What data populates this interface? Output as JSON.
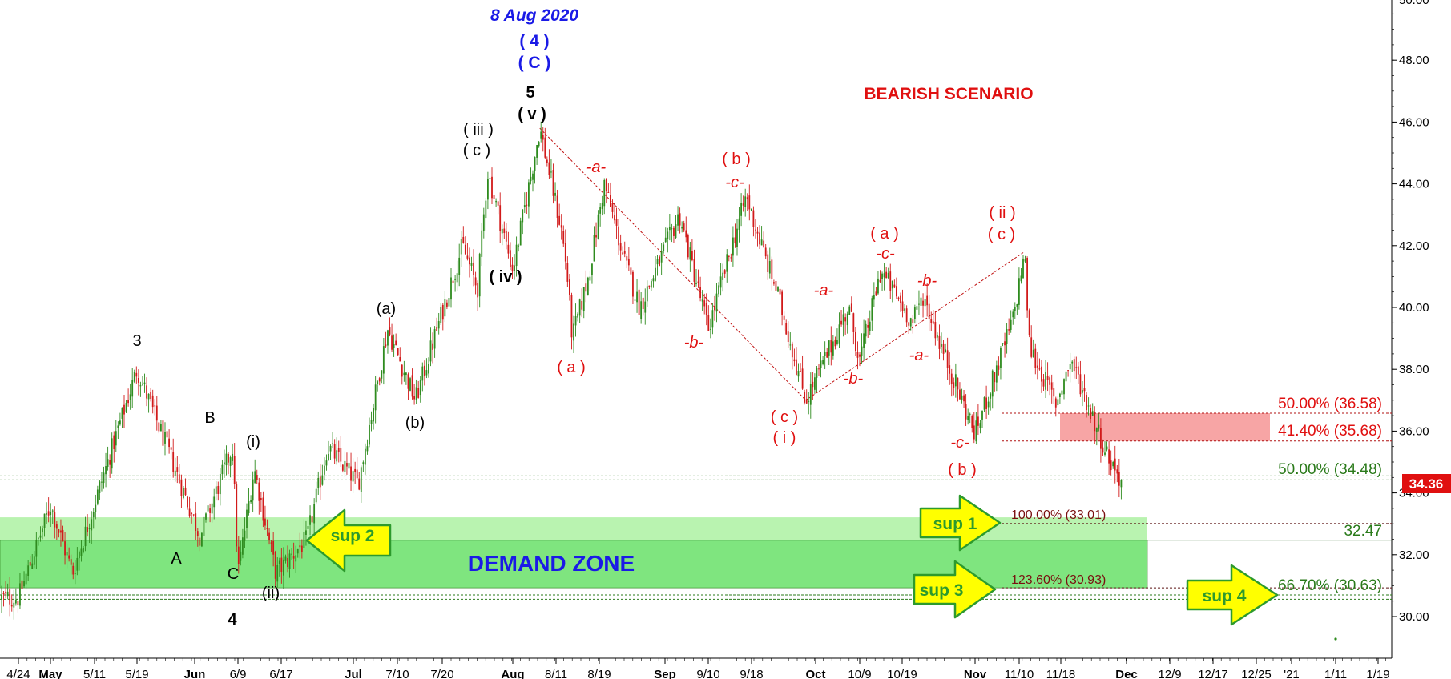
{
  "chart_data": {
    "type": "candlestick",
    "title": "BEARISH SCENARIO",
    "top_label": "8 Aug 2020",
    "ylim": [
      28.9,
      50.2
    ],
    "y_ticks": [
      30,
      32,
      34,
      36,
      38,
      40,
      42,
      44,
      46,
      48
    ],
    "y_tick_labels": [
      "30.00",
      "32.00",
      "34.00",
      "36.00",
      "38.00",
      "40.00",
      "42.00",
      "44.00",
      "46.00",
      "48.00"
    ],
    "y_top_partial_label": "50.00",
    "x_ticks": [
      "4/24",
      "May",
      "5/11",
      "5/19",
      "Jun",
      "6/9",
      "6/17",
      "Jul",
      "7/10",
      "7/20",
      "Aug",
      "8/11",
      "8/19",
      "Sep",
      "9/10",
      "9/18",
      "Oct",
      "10/9",
      "10/19",
      "Nov",
      "11/10",
      "11/18",
      "Dec",
      "12/9",
      "12/17",
      "12/25",
      "'21",
      "1/11",
      "1/19"
    ],
    "last_price": "34.36",
    "price_path": [
      {
        "date": "4/24",
        "price": 30.6
      },
      {
        "date": "5/1",
        "price": 33.6
      },
      {
        "date": "5/6",
        "price": 31.4
      },
      {
        "date": "5/19",
        "price": 38.0
      },
      {
        "date": "5/27",
        "price": 35.0
      },
      {
        "date": "6/2",
        "price": 32.6
      },
      {
        "date": "6/8",
        "price": 35.5
      },
      {
        "date": "6/9",
        "price": 31.4
      },
      {
        "date": "6/12",
        "price": 34.8
      },
      {
        "date": "6/16",
        "price": 31.4
      },
      {
        "date": "6/22",
        "price": 32.5
      },
      {
        "date": "6/26",
        "price": 35.5
      },
      {
        "date": "7/2",
        "price": 34.3
      },
      {
        "date": "7/8",
        "price": 39.3
      },
      {
        "date": "7/14",
        "price": 37.0
      },
      {
        "date": "7/24",
        "price": 42.0
      },
      {
        "date": "7/27",
        "price": 40.6
      },
      {
        "date": "7/29",
        "price": 44.4
      },
      {
        "date": "8/3",
        "price": 41.2
      },
      {
        "date": "8/8",
        "price": 45.8
      },
      {
        "date": "8/12",
        "price": 42.5
      },
      {
        "date": "8/13",
        "price": 41.2
      },
      {
        "date": "8/14",
        "price": 39.0
      },
      {
        "date": "8/17",
        "price": 41.0
      },
      {
        "date": "8/20",
        "price": 44.0
      },
      {
        "date": "8/24",
        "price": 41.5
      },
      {
        "date": "8/27",
        "price": 40.0
      },
      {
        "date": "9/4",
        "price": 43.0
      },
      {
        "date": "9/10",
        "price": 39.3
      },
      {
        "date": "9/17",
        "price": 43.6
      },
      {
        "date": "9/21",
        "price": 41.5
      },
      {
        "date": "9/23",
        "price": 40.6
      },
      {
        "date": "9/29",
        "price": 37.0
      },
      {
        "date": "10/7",
        "price": 40.0
      },
      {
        "date": "10/9",
        "price": 38.3
      },
      {
        "date": "10/14",
        "price": 41.2
      },
      {
        "date": "10/21",
        "price": 39.5
      },
      {
        "date": "10/23",
        "price": 40.4
      },
      {
        "date": "10/27",
        "price": 38.5
      },
      {
        "date": "11/2",
        "price": 35.9
      },
      {
        "date": "11/9",
        "price": 39.7
      },
      {
        "date": "11/11",
        "price": 41.8
      },
      {
        "date": "11/12",
        "price": 38.7
      },
      {
        "date": "11/17",
        "price": 36.9
      },
      {
        "date": "11/20",
        "price": 38.3
      },
      {
        "date": "11/24",
        "price": 36.6
      },
      {
        "date": "11/27",
        "price": 35.3
      },
      {
        "date": "11/30",
        "price": 34.36
      }
    ],
    "demand_zone": {
      "label": "DEMAND ZONE",
      "y_low": 30.93,
      "y_high": 33.21,
      "inner_line": 32.47
    },
    "resistance_zone": {
      "y_low": 35.68,
      "y_high": 36.58
    },
    "levels": [
      {
        "label": "50.00% (36.58)",
        "value": 36.58,
        "color": "#e01010"
      },
      {
        "label": "41.40% (35.68)",
        "value": 35.68,
        "color": "#e01010"
      },
      {
        "label": "50.00% (34.48)",
        "value": 34.48,
        "color": "#2a7a1a"
      },
      {
        "label": "100.00% (33.01)",
        "value": 33.01,
        "color": "#7a1010"
      },
      {
        "label": "32.47",
        "value": 32.47,
        "color": "#2a7a1a"
      },
      {
        "label": "123.60% (30.93)",
        "value": 30.93,
        "color": "#7a1010"
      },
      {
        "label": "66.70% (30.63)",
        "value": 30.63,
        "color": "#2a7a1a"
      }
    ],
    "support_arrows": [
      {
        "label": "sup 2",
        "direction": "left"
      },
      {
        "label": "sup 1",
        "direction": "right"
      },
      {
        "label": "sup 3",
        "direction": "right"
      },
      {
        "label": "sup 4",
        "direction": "right"
      }
    ],
    "wave_labels_black": [
      "3",
      "B",
      "A",
      "C",
      "4",
      "(i)",
      "(ii)",
      "(a)",
      "(b)",
      "( iii )",
      "( c )",
      "( iv )",
      "5",
      "( v )"
    ],
    "wave_labels_blue": [
      "( 4 )",
      "( C )"
    ],
    "wave_labels_red": [
      "-a-",
      "( a )",
      "-b-",
      "( b )",
      "-c-",
      "( c )",
      "( i )",
      "-a-",
      "-b-",
      "( a )",
      "-c-",
      "-b-",
      "-a-",
      "-c-",
      "( b )",
      "( ii )",
      "( c )"
    ]
  },
  "colors": {
    "up_candle": "#2e8b1e",
    "down_candle": "#d11a1a",
    "demand_zone": "#7fe57f",
    "demand_zone_light": "#b9f3b0",
    "resistance_zone": "#f7a5a5",
    "arrow_fill": "#ffff00",
    "arrow_stroke": "#2d9a2d",
    "blue_text": "#1a1ae6",
    "red_text": "#e01010"
  }
}
